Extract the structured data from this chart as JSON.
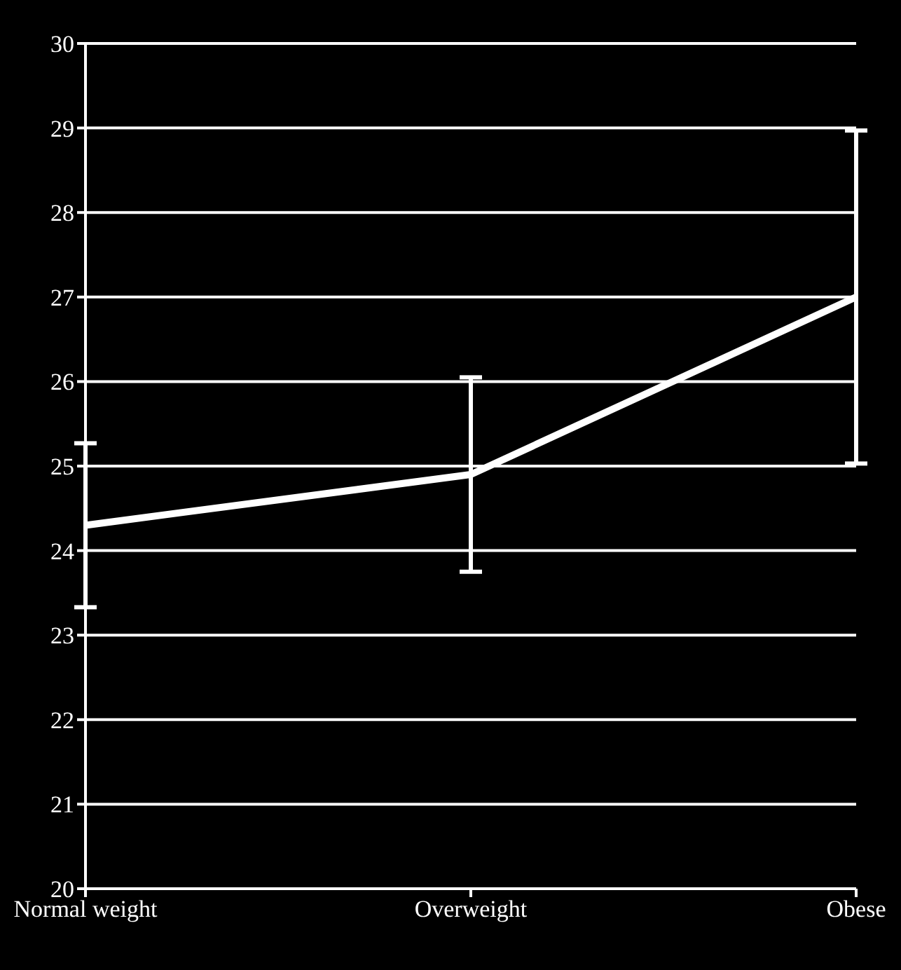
{
  "chart_data": {
    "type": "line",
    "categories": [
      "Normal weight",
      "Overweight",
      "Obese"
    ],
    "series": [
      {
        "color": "#ffffff",
        "values": [
          24.3,
          24.9,
          27.0
        ],
        "errors": [
          0.97,
          1.15,
          1.97
        ]
      }
    ],
    "ylim": [
      20,
      30
    ],
    "yticks": [
      20,
      21,
      22,
      23,
      24,
      25,
      26,
      27,
      28,
      29,
      30
    ],
    "grid": "y",
    "marker": "none",
    "line_style": "solid"
  }
}
